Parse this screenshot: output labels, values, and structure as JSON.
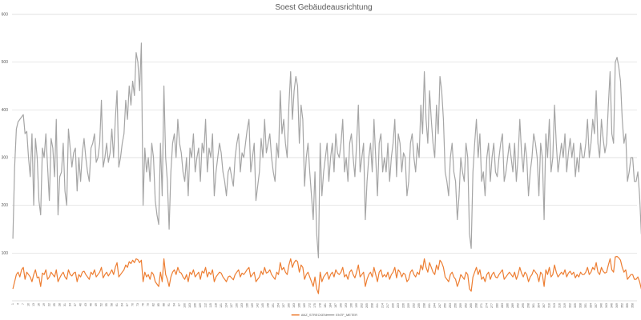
{
  "chart_data": {
    "type": "line",
    "title": "Soest Gebäudeausrichtung",
    "xlabel": "",
    "ylabel": "",
    "ylim": [
      0,
      600
    ],
    "yticks": [
      100,
      200,
      300,
      400,
      500,
      600
    ],
    "grid": true,
    "legend": "bottom",
    "x_start": 1,
    "x_end": 360,
    "x_tick_step": 3,
    "series": [
      {
        "name": "ANZ_STRECKEN",
        "color": "#ed7d31",
        "values": [
          25,
          40,
          55,
          60,
          50,
          65,
          70,
          45,
          60,
          55,
          50,
          40,
          55,
          65,
          48,
          50,
          30,
          58,
          55,
          65,
          45,
          50,
          60,
          55,
          50,
          65,
          40,
          48,
          55,
          60,
          50,
          45,
          65,
          55,
          52,
          58,
          60,
          40,
          55,
          50,
          60,
          62,
          55,
          50,
          45,
          60,
          55,
          65,
          50,
          55,
          60,
          70,
          48,
          55,
          60,
          52,
          58,
          65,
          55,
          70,
          80,
          50,
          55,
          60,
          65,
          75,
          70,
          82,
          78,
          85,
          80,
          88,
          86,
          80,
          85,
          40,
          60,
          50,
          55,
          45,
          60,
          55,
          40,
          35,
          30,
          60,
          40,
          88,
          55,
          45,
          30,
          50,
          60,
          65,
          55,
          70,
          60,
          58,
          50,
          45,
          55,
          40,
          60,
          55,
          65,
          50,
          55,
          60,
          45,
          62,
          58,
          70,
          50,
          60,
          55,
          65,
          40,
          50,
          55,
          60,
          58,
          50,
          45,
          40,
          50,
          52,
          48,
          44,
          55,
          60,
          65,
          50,
          58,
          55,
          60,
          66,
          70,
          50,
          55,
          60,
          40,
          45,
          50,
          62,
          55,
          70,
          58,
          60,
          65,
          55,
          50,
          45,
          60,
          55,
          80,
          65,
          70,
          60,
          55,
          75,
          88,
          70,
          80,
          85,
          82,
          60,
          75,
          70,
          45,
          55,
          60,
          50,
          40,
          30,
          50,
          25,
          15,
          60,
          40,
          50,
          55,
          60,
          45,
          55,
          60,
          50,
          65,
          58,
          55,
          60,
          70,
          50,
          55,
          45,
          60,
          65,
          55,
          48,
          60,
          75,
          50,
          55,
          60,
          30,
          45,
          55,
          60,
          50,
          70,
          55,
          40,
          60,
          65,
          50,
          55,
          50,
          60,
          45,
          55,
          60,
          70,
          48,
          65,
          60,
          50,
          58,
          55,
          40,
          45,
          60,
          65,
          55,
          50,
          60,
          55,
          75,
          65,
          88,
          70,
          60,
          80,
          70,
          60,
          55,
          75,
          65,
          85,
          80,
          70,
          50,
          45,
          40,
          55,
          60,
          50,
          45,
          30,
          40,
          55,
          50,
          45,
          60,
          55,
          25,
          20,
          50,
          60,
          70,
          55,
          65,
          45,
          50,
          40,
          55,
          60,
          45,
          55,
          60,
          50,
          48,
          55,
          60,
          65,
          45,
          50,
          55,
          60,
          55,
          50,
          60,
          45,
          55,
          70,
          58,
          50,
          60,
          55,
          40,
          50,
          55,
          65,
          60,
          55,
          40,
          60,
          55,
          30,
          65,
          55,
          70,
          50,
          55,
          75,
          60,
          50,
          55,
          60,
          55,
          65,
          50,
          58,
          62,
          55,
          60,
          48,
          55,
          50,
          60,
          55,
          55,
          60,
          70,
          55,
          60,
          70,
          65,
          80,
          60,
          55,
          70,
          62,
          58,
          60,
          75,
          88,
          65,
          60,
          92,
          93,
          90,
          85,
          70,
          60,
          65,
          45,
          50,
          55,
          55,
          45,
          45,
          50,
          40,
          25,
          35,
          20,
          30,
          40
        ]
      },
      {
        "name": "ENTF_METER",
        "color": "#a5a5a5",
        "values": [
          130,
          280,
          360,
          375,
          380,
          385,
          390,
          350,
          355,
          300,
          260,
          350,
          200,
          340,
          300,
          210,
          180,
          320,
          300,
          350,
          280,
          210,
          340,
          320,
          260,
          380,
          180,
          260,
          270,
          330,
          230,
          200,
          360,
          320,
          280,
          310,
          320,
          230,
          300,
          250,
          310,
          340,
          300,
          270,
          250,
          320,
          330,
          350,
          290,
          300,
          330,
          420,
          280,
          300,
          330,
          290,
          310,
          360,
          300,
          380,
          440,
          280,
          300,
          330,
          350,
          420,
          380,
          450,
          410,
          460,
          430,
          520,
          500,
          440,
          540,
          200,
          320,
          270,
          300,
          250,
          330,
          300,
          210,
          180,
          160,
          330,
          220,
          450,
          300,
          250,
          150,
          270,
          330,
          350,
          300,
          380,
          330,
          310,
          270,
          250,
          300,
          220,
          320,
          300,
          350,
          270,
          300,
          320,
          250,
          330,
          310,
          380,
          270,
          320,
          300,
          350,
          220,
          270,
          300,
          330,
          310,
          270,
          250,
          220,
          270,
          280,
          260,
          240,
          300,
          330,
          350,
          270,
          310,
          300,
          330,
          360,
          380,
          270,
          300,
          330,
          210,
          240,
          270,
          340,
          300,
          380,
          310,
          330,
          350,
          300,
          270,
          250,
          330,
          300,
          440,
          350,
          380,
          330,
          300,
          410,
          480,
          380,
          440,
          470,
          450,
          330,
          410,
          380,
          240,
          300,
          330,
          270,
          220,
          170,
          270,
          140,
          90,
          330,
          220,
          270,
          300,
          330,
          250,
          300,
          330,
          270,
          350,
          310,
          300,
          330,
          380,
          270,
          300,
          250,
          330,
          350,
          300,
          260,
          330,
          410,
          270,
          300,
          330,
          170,
          250,
          300,
          330,
          270,
          380,
          300,
          220,
          330,
          350,
          270,
          300,
          270,
          330,
          250,
          300,
          330,
          380,
          260,
          350,
          330,
          270,
          310,
          300,
          220,
          250,
          330,
          350,
          300,
          270,
          330,
          300,
          410,
          350,
          480,
          380,
          330,
          440,
          380,
          330,
          300,
          410,
          350,
          470,
          440,
          380,
          270,
          250,
          220,
          300,
          330,
          270,
          250,
          170,
          220,
          300,
          270,
          250,
          330,
          300,
          140,
          110,
          270,
          330,
          380,
          300,
          350,
          250,
          270,
          220,
          300,
          330,
          250,
          300,
          330,
          270,
          260,
          300,
          330,
          350,
          250,
          270,
          300,
          330,
          300,
          270,
          330,
          250,
          300,
          380,
          310,
          270,
          330,
          300,
          220,
          270,
          300,
          350,
          330,
          300,
          220,
          330,
          300,
          170,
          350,
          300,
          380,
          270,
          300,
          410,
          330,
          270,
          300,
          330,
          300,
          350,
          270,
          310,
          340,
          300,
          330,
          260,
          300,
          270,
          330,
          300,
          300,
          330,
          380,
          300,
          330,
          380,
          350,
          440,
          330,
          300,
          380,
          340,
          310,
          330,
          410,
          480,
          350,
          330,
          500,
          510,
          490,
          460,
          380,
          330,
          350,
          250,
          270,
          300,
          300,
          250,
          250,
          270,
          220,
          140,
          190,
          110,
          170,
          220
        ]
      }
    ]
  }
}
